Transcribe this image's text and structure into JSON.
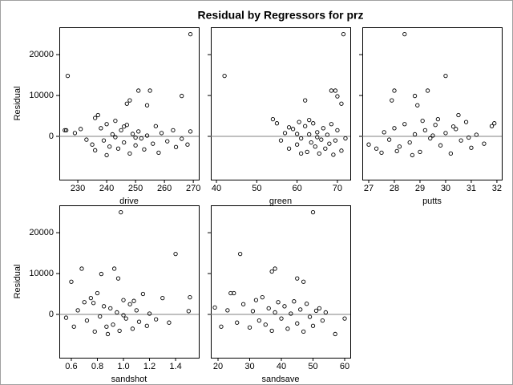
{
  "title": "Residual by Regressors for prz",
  "chart_data": [
    {
      "type": "scatter",
      "xlabel": "drive",
      "ylabel": "Residual",
      "color": "#000000",
      "refline": 0,
      "xlim": [
        223.6,
        271.9
      ],
      "xticks": [
        230,
        240,
        250,
        260,
        270
      ],
      "ylim": [
        -10600,
        26700
      ],
      "yticks": [
        0,
        10000,
        20000
      ],
      "x": [
        269,
        226.5,
        251,
        255,
        254,
        248,
        247,
        266,
        225.5,
        226,
        229,
        231,
        233,
        235,
        236,
        237,
        238,
        239,
        240,
        241,
        242,
        243,
        244,
        245,
        246,
        247,
        248,
        249,
        250,
        251,
        252,
        253,
        254,
        256,
        257,
        258,
        259,
        261,
        263,
        264,
        266,
        268,
        269,
        236,
        243,
        240,
        246,
        250
      ],
      "values": [
        25000,
        14800,
        11200,
        11200,
        7600,
        8800,
        8000,
        9900,
        1500,
        1500,
        800,
        1800,
        -800,
        -2000,
        4500,
        5200,
        2000,
        -1000,
        3000,
        -2500,
        500,
        3800,
        -3000,
        1500,
        -1500,
        2800,
        -4200,
        600,
        -2200,
        1200,
        -500,
        -3200,
        200,
        -1800,
        2500,
        -4000,
        800,
        -1200,
        1500,
        -2600,
        -600,
        -2000,
        1200,
        -3400,
        -200,
        -4600,
        2400,
        -300
      ]
    },
    {
      "type": "scatter",
      "xlabel": "green",
      "color": "#000000",
      "refline": 0,
      "xlim": [
        38.6,
        73.2
      ],
      "xticks": [
        40,
        50,
        60,
        70
      ],
      "x": [
        71.5,
        42,
        68.5,
        69.5,
        70,
        71,
        62,
        54,
        55,
        56,
        57,
        58,
        59,
        60,
        60.5,
        61,
        62,
        62.5,
        63,
        63.5,
        64,
        64.5,
        65,
        65.5,
        66,
        66.5,
        67,
        67.5,
        68,
        68.5,
        69,
        69.5,
        70,
        71,
        72,
        61,
        63,
        65,
        58,
        60
      ],
      "values": [
        25000,
        14800,
        11200,
        11200,
        9800,
        8000,
        8800,
        4200,
        3200,
        -1000,
        800,
        -3000,
        1800,
        -2000,
        3500,
        -500,
        2500,
        -3800,
        500,
        -1500,
        3200,
        -2500,
        1000,
        -4200,
        -800,
        2000,
        -3000,
        400,
        -1800,
        3000,
        -4500,
        -1000,
        1500,
        -3500,
        -500,
        -4200,
        4000,
        -200,
        2200,
        600
      ]
    },
    {
      "type": "scatter",
      "xlabel": "putts",
      "color": "#000000",
      "refline": 0,
      "xlim": [
        26.75,
        32.19
      ],
      "xticks": [
        27,
        28,
        29,
        30,
        31,
        32
      ],
      "x": [
        28.4,
        30,
        28,
        29.3,
        28.8,
        27.9,
        28.9,
        30.5,
        27,
        27.3,
        27.6,
        27.8,
        28,
        28.2,
        28.4,
        28.6,
        28.8,
        29,
        29.2,
        29.4,
        29.6,
        29.8,
        30,
        30.2,
        30.4,
        30.6,
        30.8,
        31,
        31.2,
        31.5,
        31.8,
        31.9,
        27.5,
        28.1,
        29.1,
        29.7,
        30.9,
        28.7,
        29.5,
        30.3
      ],
      "values": [
        25000,
        14800,
        11200,
        11200,
        9900,
        8800,
        7600,
        5200,
        -2000,
        -3000,
        1000,
        -800,
        2000,
        -2500,
        3000,
        -1500,
        500,
        -3800,
        1500,
        -500,
        2800,
        -2200,
        800,
        -4200,
        1800,
        -1000,
        3500,
        -2800,
        400,
        -1800,
        2500,
        3200,
        -4000,
        -3600,
        3800,
        4200,
        -300,
        -4600,
        200,
        2400
      ]
    },
    {
      "type": "scatter",
      "xlabel": "sandshot",
      "ylabel": "Residual",
      "color": "#000000",
      "refline": 0,
      "xlim": [
        0.508,
        1.578
      ],
      "xticks": [
        0.6,
        0.8,
        {
          "value": 1,
          "label": "1.0"
        },
        1.2,
        1.4
      ],
      "ylim": [
        -10600,
        26700
      ],
      "yticks": [
        0,
        10000,
        20000
      ],
      "x": [
        0.98,
        1.4,
        0.68,
        0.93,
        0.96,
        0.6,
        0.83,
        1.51,
        1.5,
        0.56,
        0.62,
        0.65,
        0.7,
        0.72,
        0.75,
        0.78,
        0.8,
        0.82,
        0.85,
        0.87,
        0.9,
        0.92,
        0.95,
        0.97,
        1.0,
        1.02,
        1.05,
        1.07,
        1.1,
        1.12,
        1.15,
        1.18,
        1.2,
        1.25,
        1.3,
        1.35,
        0.88,
        1.0,
        0.77,
        1.08
      ],
      "values": [
        25000,
        14800,
        11200,
        11200,
        8800,
        8000,
        9900,
        4200,
        800,
        -800,
        -3000,
        1000,
        3000,
        -1500,
        4000,
        -4200,
        5200,
        -500,
        2000,
        -3000,
        1500,
        -2500,
        500,
        -4000,
        3500,
        -1000,
        2500,
        -3500,
        1000,
        -1800,
        5000,
        -2800,
        200,
        -1200,
        4000,
        -2000,
        -4800,
        -200,
        2800,
        3300
      ]
    },
    {
      "type": "scatter",
      "xlabel": "sandsave",
      "color": "#000000",
      "refline": 0,
      "xlim": [
        17.72,
        61.77
      ],
      "xticks": [
        20,
        30,
        40,
        50,
        60
      ],
      "x": [
        50,
        27,
        38,
        37,
        45,
        47,
        24,
        25,
        19,
        21,
        23,
        26,
        28,
        30,
        31,
        32,
        33,
        34,
        35,
        36,
        37,
        38,
        39,
        40,
        41,
        42,
        43,
        44,
        45,
        46,
        47,
        48,
        49,
        50,
        51,
        52,
        53,
        54,
        57,
        60
      ],
      "values": [
        25000,
        14800,
        11200,
        10500,
        8800,
        8000,
        5200,
        5200,
        1700,
        -3000,
        1000,
        -2000,
        2500,
        -3200,
        800,
        3500,
        -1500,
        4200,
        -2500,
        1500,
        -4000,
        500,
        3000,
        -1000,
        2000,
        -3500,
        200,
        3200,
        -2200,
        1200,
        -4200,
        2600,
        -600,
        -2800,
        900,
        1500,
        -1500,
        500,
        -4800,
        -1000
      ]
    }
  ]
}
